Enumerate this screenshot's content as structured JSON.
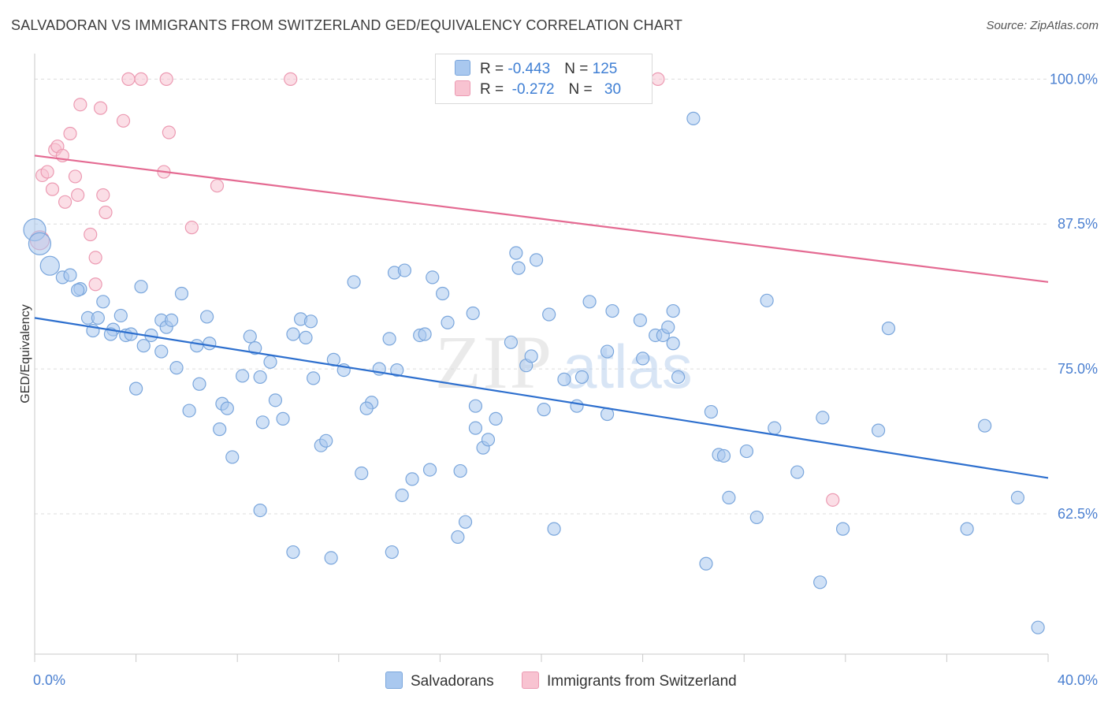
{
  "title": "SALVADORAN VS IMMIGRANTS FROM SWITZERLAND GED/EQUIVALENCY CORRELATION CHART",
  "source": "Source: ZipAtlas.com",
  "legend": {
    "row1": {
      "r_label": "R = ",
      "r_value": "-0.443",
      "n_label": "N = ",
      "n_value": "125"
    },
    "row2": {
      "r_label": "R = ",
      "r_value": " -0.272",
      "n_label": "N = ",
      "n_value": "30"
    }
  },
  "bottom_legend": {
    "series1": "Salvadorans",
    "series2": "Immigrants from Switzerland"
  },
  "colors": {
    "blue_fill": "#a9c8ef",
    "blue_stroke": "#7aa6dc",
    "blue_line": "#2d6fce",
    "pink_fill": "#f8c3d1",
    "pink_stroke": "#ec9ab2",
    "pink_line": "#e46a92",
    "axis_label": "#4a7fd0",
    "grid": "#dcdcdc"
  },
  "chart_data": {
    "type": "scatter",
    "title": "SALVADORAN VS IMMIGRANTS FROM SWITZERLAND GED/EQUIVALENCY CORRELATION CHART",
    "xlabel": "",
    "ylabel": "GED/Equivalency",
    "xlim": [
      0,
      40
    ],
    "ylim": [
      50.4,
      102.2
    ],
    "x_ticks": [
      "0.0%",
      "40.0%"
    ],
    "y_ticks": [
      {
        "value": 100.0,
        "label": "100.0%"
      },
      {
        "value": 87.5,
        "label": "87.5%"
      },
      {
        "value": 75.0,
        "label": "75.0%"
      },
      {
        "value": 62.5,
        "label": "62.5%"
      }
    ],
    "grid": true,
    "legend_position": "top-center",
    "watermark": "ZIPatlas",
    "series": [
      {
        "name": "Salvadorans",
        "r": -0.443,
        "n": 125,
        "trend": {
          "x0": 0,
          "y0": 79.4,
          "x1": 40,
          "y1": 65.6
        },
        "points": [
          [
            0.0,
            87.0,
            14
          ],
          [
            0.2,
            85.8,
            14
          ],
          [
            0.6,
            83.9,
            12
          ],
          [
            1.1,
            82.9,
            8
          ],
          [
            1.4,
            83.1,
            8
          ],
          [
            1.8,
            81.9,
            8
          ],
          [
            1.7,
            81.8,
            8
          ],
          [
            2.7,
            80.8,
            8
          ],
          [
            2.1,
            79.4,
            8
          ],
          [
            2.5,
            79.4,
            8
          ],
          [
            3.4,
            79.6,
            8
          ],
          [
            3.1,
            78.4,
            8
          ],
          [
            2.3,
            78.3,
            8
          ],
          [
            3.0,
            78.0,
            8
          ],
          [
            3.6,
            77.9,
            8
          ],
          [
            3.8,
            78.0,
            8
          ],
          [
            4.3,
            77.0,
            8
          ],
          [
            4.6,
            77.9,
            8
          ],
          [
            5.0,
            79.2,
            8
          ],
          [
            5.2,
            78.6,
            8
          ],
          [
            5.4,
            79.2,
            8
          ],
          [
            5.8,
            81.5,
            8
          ],
          [
            5.0,
            76.5,
            8
          ],
          [
            5.6,
            75.1,
            8
          ],
          [
            6.4,
            77.0,
            8
          ],
          [
            6.8,
            79.5,
            8
          ],
          [
            6.9,
            77.2,
            8
          ],
          [
            4.2,
            82.1,
            8
          ],
          [
            4.0,
            73.3,
            8
          ],
          [
            6.1,
            71.4,
            8
          ],
          [
            6.5,
            73.7,
            8
          ],
          [
            7.4,
            72.0,
            8
          ],
          [
            7.6,
            71.6,
            8
          ],
          [
            7.3,
            69.8,
            8
          ],
          [
            7.8,
            67.4,
            8
          ],
          [
            8.2,
            74.4,
            8
          ],
          [
            8.9,
            74.3,
            8
          ],
          [
            8.5,
            77.8,
            8
          ],
          [
            8.7,
            76.8,
            8
          ],
          [
            9.3,
            75.6,
            8
          ],
          [
            9.5,
            72.3,
            8
          ],
          [
            9.0,
            70.4,
            8
          ],
          [
            9.8,
            70.7,
            8
          ],
          [
            8.9,
            62.8,
            8
          ],
          [
            10.2,
            78.0,
            8
          ],
          [
            10.5,
            79.3,
            8
          ],
          [
            10.9,
            79.1,
            8
          ],
          [
            10.7,
            77.7,
            8
          ],
          [
            11.0,
            74.2,
            8
          ],
          [
            11.3,
            68.4,
            8
          ],
          [
            11.5,
            68.8,
            8
          ],
          [
            11.8,
            75.8,
            8
          ],
          [
            12.2,
            74.9,
            8
          ],
          [
            12.6,
            82.5,
            8
          ],
          [
            12.9,
            66.0,
            8
          ],
          [
            13.3,
            72.1,
            8
          ],
          [
            13.1,
            71.6,
            8
          ],
          [
            13.6,
            75.0,
            8
          ],
          [
            14.0,
            77.6,
            8
          ],
          [
            14.2,
            83.3,
            8
          ],
          [
            14.6,
            83.5,
            8
          ],
          [
            14.3,
            74.9,
            8
          ],
          [
            14.5,
            64.1,
            8
          ],
          [
            14.1,
            59.2,
            8
          ],
          [
            10.2,
            59.2,
            8
          ],
          [
            11.7,
            58.7,
            8
          ],
          [
            14.9,
            65.5,
            8
          ],
          [
            15.2,
            77.9,
            8
          ],
          [
            15.4,
            78.0,
            8
          ],
          [
            15.7,
            82.9,
            8
          ],
          [
            15.6,
            66.3,
            8
          ],
          [
            16.1,
            81.5,
            8
          ],
          [
            16.3,
            79.0,
            8
          ],
          [
            16.8,
            66.2,
            8
          ],
          [
            17.0,
            61.8,
            8
          ],
          [
            16.7,
            60.5,
            8
          ],
          [
            17.4,
            69.9,
            8
          ],
          [
            17.4,
            71.8,
            8
          ],
          [
            17.7,
            68.2,
            8
          ],
          [
            17.9,
            68.9,
            8
          ],
          [
            17.3,
            79.8,
            8
          ],
          [
            18.2,
            70.7,
            8
          ],
          [
            18.8,
            77.3,
            8
          ],
          [
            19.0,
            85.0,
            8
          ],
          [
            19.1,
            83.7,
            8
          ],
          [
            19.4,
            75.3,
            8
          ],
          [
            19.6,
            76.1,
            8
          ],
          [
            19.8,
            84.4,
            8
          ],
          [
            20.3,
            79.7,
            8
          ],
          [
            20.1,
            71.5,
            8
          ],
          [
            20.5,
            61.2,
            8
          ],
          [
            20.9,
            74.1,
            8
          ],
          [
            21.4,
            71.8,
            8
          ],
          [
            21.6,
            74.3,
            8
          ],
          [
            21.9,
            80.8,
            8
          ],
          [
            22.6,
            76.5,
            8
          ],
          [
            22.6,
            71.1,
            8
          ],
          [
            22.8,
            80.0,
            8
          ],
          [
            23.9,
            79.2,
            8
          ],
          [
            24.0,
            75.9,
            8
          ],
          [
            24.5,
            77.9,
            8
          ],
          [
            24.8,
            77.9,
            8
          ],
          [
            25.0,
            78.6,
            8
          ],
          [
            25.2,
            77.2,
            8
          ],
          [
            25.4,
            74.3,
            8
          ],
          [
            25.2,
            80.0,
            8
          ],
          [
            26.0,
            96.6,
            8
          ],
          [
            26.5,
            58.2,
            8
          ],
          [
            26.7,
            71.3,
            8
          ],
          [
            27.0,
            67.6,
            8
          ],
          [
            27.2,
            67.5,
            8
          ],
          [
            27.4,
            63.9,
            8
          ],
          [
            28.1,
            67.9,
            8
          ],
          [
            28.5,
            62.2,
            8
          ],
          [
            28.9,
            80.9,
            8
          ],
          [
            29.2,
            69.9,
            8
          ],
          [
            30.1,
            66.1,
            8
          ],
          [
            31.0,
            56.6,
            8
          ],
          [
            31.1,
            70.8,
            8
          ],
          [
            31.9,
            61.2,
            8
          ],
          [
            33.3,
            69.7,
            8
          ],
          [
            33.7,
            78.5,
            8
          ],
          [
            36.8,
            61.2,
            8
          ],
          [
            37.5,
            70.1,
            8
          ],
          [
            38.8,
            63.9,
            8
          ],
          [
            39.6,
            52.7,
            8
          ]
        ]
      },
      {
        "name": "Immigrants from Switzerland",
        "r": -0.272,
        "n": 30,
        "trend": {
          "x0": 0,
          "y0": 93.4,
          "x1": 40,
          "y1": 82.5
        },
        "points": [
          [
            0.2,
            86.1,
            12
          ],
          [
            0.3,
            91.7,
            8
          ],
          [
            0.5,
            92.0,
            8
          ],
          [
            0.7,
            90.5,
            8
          ],
          [
            0.8,
            93.9,
            8
          ],
          [
            0.9,
            94.2,
            8
          ],
          [
            1.2,
            89.4,
            8
          ],
          [
            1.1,
            93.4,
            8
          ],
          [
            1.4,
            95.3,
            8
          ],
          [
            1.6,
            91.6,
            8
          ],
          [
            1.7,
            90.0,
            8
          ],
          [
            1.8,
            97.8,
            8
          ],
          [
            2.2,
            86.6,
            8
          ],
          [
            2.4,
            84.6,
            8
          ],
          [
            2.4,
            82.3,
            8
          ],
          [
            2.6,
            97.5,
            8
          ],
          [
            2.7,
            90.0,
            8
          ],
          [
            2.8,
            88.5,
            8
          ],
          [
            3.5,
            96.4,
            8
          ],
          [
            3.7,
            100.0,
            8
          ],
          [
            4.2,
            100.0,
            8
          ],
          [
            5.1,
            92.0,
            8
          ],
          [
            5.2,
            100.0,
            8
          ],
          [
            5.3,
            95.4,
            8
          ],
          [
            6.2,
            87.2,
            8
          ],
          [
            7.2,
            90.8,
            8
          ],
          [
            10.1,
            100.0,
            8
          ],
          [
            18.2,
            100.0,
            8
          ],
          [
            24.6,
            100.0,
            8
          ],
          [
            31.5,
            63.7,
            8
          ]
        ]
      }
    ]
  }
}
